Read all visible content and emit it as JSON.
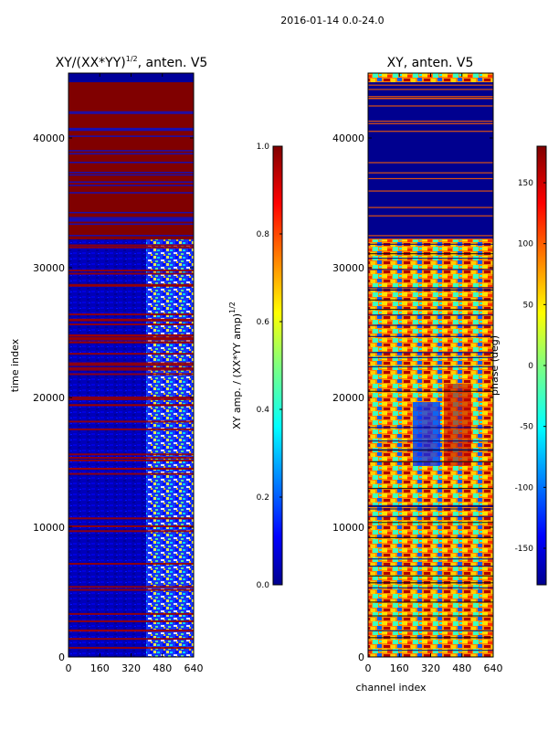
{
  "figure": {
    "suptitle": "2016-01-14 0.0-24.0"
  },
  "chart_data": [
    {
      "type": "heatmap",
      "title_main": "XY/(XX*YY)",
      "title_exp": "1/2",
      "title_suffix": ", anten. V5",
      "xlabel": "",
      "ylabel": "time index",
      "x_range": [
        0,
        640
      ],
      "y_range": [
        0,
        45000
      ],
      "x_ticks": [
        0,
        160,
        320,
        480,
        640
      ],
      "y_ticks": [
        0,
        10000,
        20000,
        30000,
        40000
      ],
      "colorbar": {
        "label_main": "XY amp. / (XX*YY amp)",
        "label_exp": "1/2",
        "range": [
          0.0,
          1.0
        ],
        "ticks": [
          "0.0",
          "0.2",
          "0.4",
          "0.6",
          "0.8",
          "1.0"
        ],
        "tick_values": [
          0.0,
          0.2,
          0.4,
          0.6,
          0.8,
          1.0
        ]
      },
      "regions": [
        {
          "y_from": 32200,
          "y_to": 45000,
          "level": "high",
          "value": 1.0
        },
        {
          "y_from": 0,
          "y_to": 32200,
          "level": "low",
          "value": 0.05
        },
        {
          "x_from": 400,
          "x_to": 640,
          "y_from": 0,
          "y_to": 32200,
          "level": "mixed",
          "value": 0.5
        }
      ]
    },
    {
      "type": "heatmap",
      "title_main": "XY, anten. V5",
      "xlabel": "channel index",
      "ylabel": "",
      "x_range": [
        0,
        640
      ],
      "y_range": [
        0,
        45000
      ],
      "x_ticks": [
        0,
        160,
        320,
        480,
        640
      ],
      "y_ticks": [
        0,
        10000,
        20000,
        30000,
        40000
      ],
      "colorbar": {
        "label_main": "phase (deg)",
        "range": [
          -180,
          180
        ],
        "ticks": [
          "-150",
          "-100",
          "-50",
          "0",
          "50",
          "100",
          "150"
        ],
        "tick_values": [
          -150,
          -100,
          -50,
          0,
          50,
          100,
          150
        ]
      },
      "regions": [
        {
          "y_from": 32200,
          "y_to": 44000,
          "level": "low",
          "value": -180
        },
        {
          "y_from": 0,
          "y_to": 32200,
          "level": "mixed",
          "value": 90
        }
      ]
    }
  ],
  "colors": {
    "jet_dark_red": "#800000",
    "jet_dark_blue": "#00008f",
    "jet_blue": "#0000ff",
    "jet_cyan": "#00ffff",
    "jet_yellow": "#ffff00",
    "jet_red": "#ff0000"
  }
}
